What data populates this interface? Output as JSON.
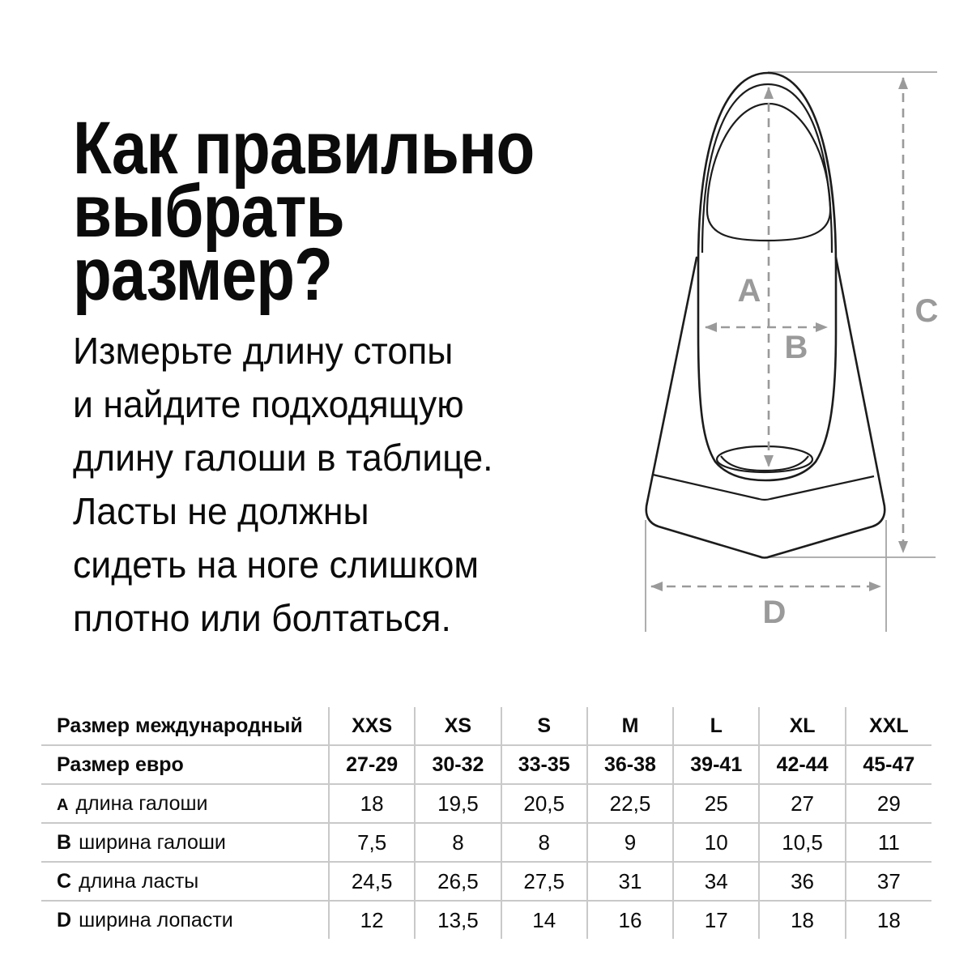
{
  "page": {
    "background": "#ffffff",
    "text_color": "#0b0b0b"
  },
  "heading": {
    "lines": [
      "Как правильно",
      "выбрать",
      "размер?"
    ]
  },
  "intro": {
    "lines": [
      "Измерьте длину стопы",
      "и найдите подходящую",
      "длину галоши в таблице.",
      "Ласты не должны",
      "сидеть на ноге слишком",
      "плотно или болтаться."
    ]
  },
  "diagram": {
    "description": "swim-fin top view with dimension arrows",
    "labels": {
      "a": "A",
      "b": "B",
      "c": "C",
      "d": "D"
    },
    "outline_color": "#1c1c1c",
    "measure_color": "#9a9a9a"
  },
  "table": {
    "line_color": "#c9c9c9",
    "rows": [
      {
        "prefix": "",
        "label": "Размер международный",
        "bold": true,
        "values": [
          "XXS",
          "XS",
          "S",
          "M",
          "L",
          "XL",
          "XXL"
        ]
      },
      {
        "prefix": "",
        "label": "Размер евро",
        "bold": true,
        "values": [
          "27-29",
          "30-32",
          "33-35",
          "36-38",
          "39-41",
          "42-44",
          "45-47"
        ]
      },
      {
        "prefix": "А",
        "label": "длина галоши",
        "bold": false,
        "values": [
          "18",
          "19,5",
          "20,5",
          "22,5",
          "25",
          "27",
          "29"
        ]
      },
      {
        "prefix": "B",
        "label": "ширина галоши",
        "bold": false,
        "values": [
          "7,5",
          "8",
          "8",
          "9",
          "10",
          "10,5",
          "11"
        ]
      },
      {
        "prefix": "C",
        "label": "длина ласты",
        "bold": false,
        "values": [
          "24,5",
          "26,5",
          "27,5",
          "31",
          "34",
          "36",
          "37"
        ]
      },
      {
        "prefix": "D",
        "label": "ширина лопасти",
        "bold": false,
        "values": [
          "12",
          "13,5",
          "14",
          "16",
          "17",
          "18",
          "18"
        ]
      }
    ]
  }
}
